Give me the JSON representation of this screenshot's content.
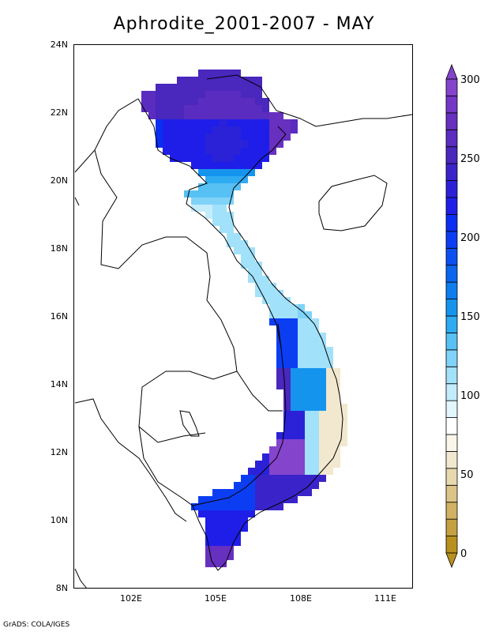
{
  "title": "Aphrodite_2001-2007 - MAY",
  "map": {
    "lat_labels": [
      "24N",
      "22N",
      "20N",
      "18N",
      "16N",
      "14N",
      "12N",
      "10N",
      "8N"
    ],
    "lon_labels": [
      "102E",
      "105E",
      "108E",
      "111E"
    ],
    "lon_range": [
      100,
      112
    ],
    "lat_range": [
      8,
      24
    ]
  },
  "colorbar": {
    "labels": [
      "300",
      "250",
      "200",
      "150",
      "100",
      "50",
      "0"
    ],
    "range": [
      0,
      300
    ],
    "colors": [
      "#b8901e",
      "#c4a040",
      "#d1b262",
      "#dcc487",
      "#e7d8ae",
      "#f1e8cf",
      "#fbf6ea",
      "#ffffff",
      "#e2f6fd",
      "#c3ecfb",
      "#a2e1fa",
      "#7fd3f8",
      "#57c1f4",
      "#2eabf1",
      "#1594ee",
      "#0d7df0",
      "#0a66ef",
      "#0a4ff2",
      "#0b3ef3",
      "#0a2ff2",
      "#1f1ee8",
      "#2b22d8",
      "#3a24c9",
      "#4a27bd",
      "#5a2cbf",
      "#6730bf",
      "#7437c6",
      "#8444cc"
    ]
  },
  "credit": "GrADS: COLA/IGES"
}
